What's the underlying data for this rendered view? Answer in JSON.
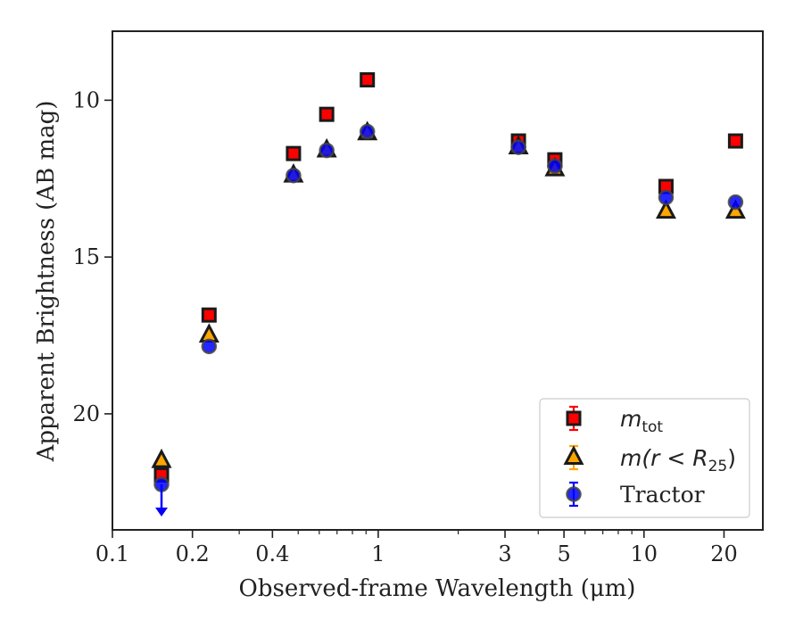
{
  "chart_data": {
    "type": "scatter",
    "title": "",
    "xlabel": "Observed-frame Wavelength (μm)",
    "ylabel": "Apparent Brightness (AB mag)",
    "xscale": "log",
    "xlim": [
      0.1,
      28
    ],
    "ylim": [
      23.7,
      7.8
    ],
    "y_inverted": true,
    "x_ticks": [
      {
        "value": 0.1,
        "label": "0.1"
      },
      {
        "value": 0.2,
        "label": "0.2"
      },
      {
        "value": 0.4,
        "label": "0.4"
      },
      {
        "value": 1,
        "label": "1"
      },
      {
        "value": 3,
        "label": "3"
      },
      {
        "value": 5,
        "label": "5"
      },
      {
        "value": 10,
        "label": "10"
      },
      {
        "value": 20,
        "label": "20"
      }
    ],
    "y_ticks": [
      {
        "value": 10,
        "label": "10"
      },
      {
        "value": 15,
        "label": "15"
      },
      {
        "value": 20,
        "label": "20"
      }
    ],
    "legend_position": "lower-right",
    "series": [
      {
        "name": "m_tot",
        "label_main": "m",
        "label_sub": "tot",
        "marker": "square",
        "color": "#ff0000",
        "edge_color": "#1a1a1a",
        "points": [
          {
            "x": 0.153,
            "y": 21.95
          },
          {
            "x": 0.231,
            "y": 16.85
          },
          {
            "x": 0.48,
            "y": 11.7
          },
          {
            "x": 0.64,
            "y": 10.45
          },
          {
            "x": 0.91,
            "y": 9.35
          },
          {
            "x": 3.37,
            "y": 11.3
          },
          {
            "x": 4.62,
            "y": 11.9
          },
          {
            "x": 12.1,
            "y": 12.75
          },
          {
            "x": 22.1,
            "y": 11.3
          }
        ]
      },
      {
        "name": "m(r<R25)",
        "label_main": "m(r < R",
        "label_sub": "25",
        "label_tail": ")",
        "marker": "triangle",
        "color": "#ffa500",
        "edge_color": "#1a1a1a",
        "points": [
          {
            "x": 0.153,
            "y": 21.5
          },
          {
            "x": 0.231,
            "y": 17.5
          },
          {
            "x": 0.48,
            "y": 12.4
          },
          {
            "x": 0.64,
            "y": 11.6
          },
          {
            "x": 0.91,
            "y": 11.05
          },
          {
            "x": 3.37,
            "y": 11.5
          },
          {
            "x": 4.62,
            "y": 12.2
          },
          {
            "x": 12.1,
            "y": 13.55
          },
          {
            "x": 22.1,
            "y": 13.55
          }
        ]
      },
      {
        "name": "Tractor",
        "label_main": "Tractor",
        "marker": "circle",
        "color": "#0000ff",
        "edge_color": "#444444",
        "points": [
          {
            "x": 0.153,
            "y": 22.25,
            "upper_limit": true
          },
          {
            "x": 0.231,
            "y": 17.85
          },
          {
            "x": 0.48,
            "y": 12.4
          },
          {
            "x": 0.64,
            "y": 11.6
          },
          {
            "x": 0.91,
            "y": 11.0
          },
          {
            "x": 3.37,
            "y": 11.5
          },
          {
            "x": 4.62,
            "y": 12.1
          },
          {
            "x": 12.1,
            "y": 13.1
          },
          {
            "x": 22.1,
            "y": 13.25
          }
        ]
      }
    ]
  }
}
